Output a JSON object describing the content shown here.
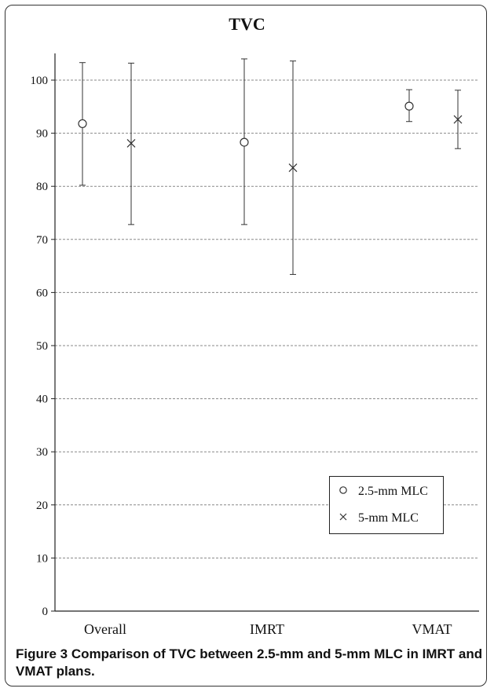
{
  "figure": {
    "caption_label": "Figure 3",
    "caption_text": "Comparison of TVC between 2.5-mm and 5-mm MLC in IMRT and VMAT plans."
  },
  "chart_data": {
    "type": "scatter",
    "title": "TVC",
    "xlabel": "",
    "ylabel": "",
    "categories": [
      "Overall",
      "IMRT",
      "VMAT"
    ],
    "ylim": [
      0,
      100
    ],
    "yticks": [
      0,
      10,
      20,
      30,
      40,
      50,
      60,
      70,
      80,
      90,
      100
    ],
    "grid": true,
    "legend_position": "bottom-right",
    "series": [
      {
        "name": "2.5-mm MLC",
        "marker": "circle",
        "color": "#333333",
        "values": [
          91.8,
          88.3,
          95.1
        ],
        "error_low": [
          80.2,
          72.8,
          92.2
        ],
        "error_high": [
          103.3,
          104.0,
          98.2
        ]
      },
      {
        "name": "5-mm MLC",
        "marker": "x",
        "color": "#333333",
        "values": [
          88.1,
          83.5,
          92.6
        ],
        "error_low": [
          72.8,
          63.4,
          87.1
        ],
        "error_high": [
          103.2,
          103.6,
          98.1
        ]
      }
    ]
  }
}
